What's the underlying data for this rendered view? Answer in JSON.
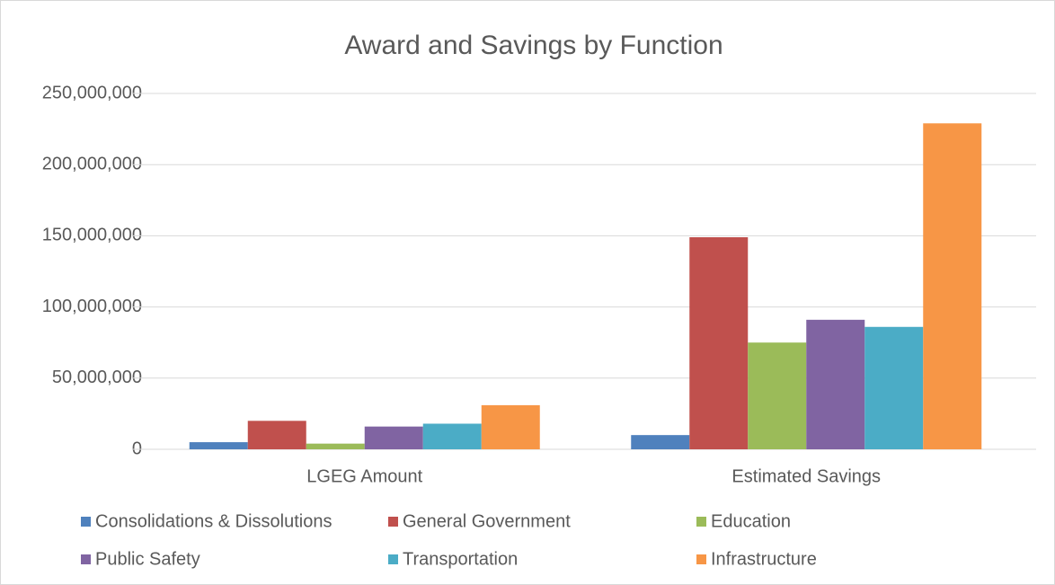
{
  "chart_data": {
    "type": "bar",
    "title": "Award and Savings by Function",
    "categories": [
      "LGEG Amount",
      "Estimated Savings"
    ],
    "series": [
      {
        "name": "Consolidations & Dissolutions",
        "color": "#4f81bd",
        "values": [
          5000000,
          10000000
        ]
      },
      {
        "name": "General Government",
        "color": "#c0504d",
        "values": [
          20000000,
          149000000
        ]
      },
      {
        "name": "Education",
        "color": "#9bbb59",
        "values": [
          4000000,
          75000000
        ]
      },
      {
        "name": "Public Safety",
        "color": "#8064a2",
        "values": [
          16000000,
          91000000
        ]
      },
      {
        "name": "Transportation",
        "color": "#4bacc6",
        "values": [
          18000000,
          86000000
        ]
      },
      {
        "name": "Infrastructure",
        "color": "#f79646",
        "values": [
          31000000,
          229000000
        ]
      }
    ],
    "ylim": [
      0,
      250000000
    ],
    "yticks": [
      0,
      {
        "value": 50000000,
        "label": "50,000,000"
      },
      {
        "value": 100000000,
        "label": "100,000,000"
      },
      {
        "value": 150000000,
        "label": "150,000,000"
      },
      {
        "value": 200000000,
        "label": "200,000,000"
      },
      {
        "value": 250000000,
        "label": "250,000,000"
      }
    ],
    "grid": true,
    "legend": "bottom"
  }
}
